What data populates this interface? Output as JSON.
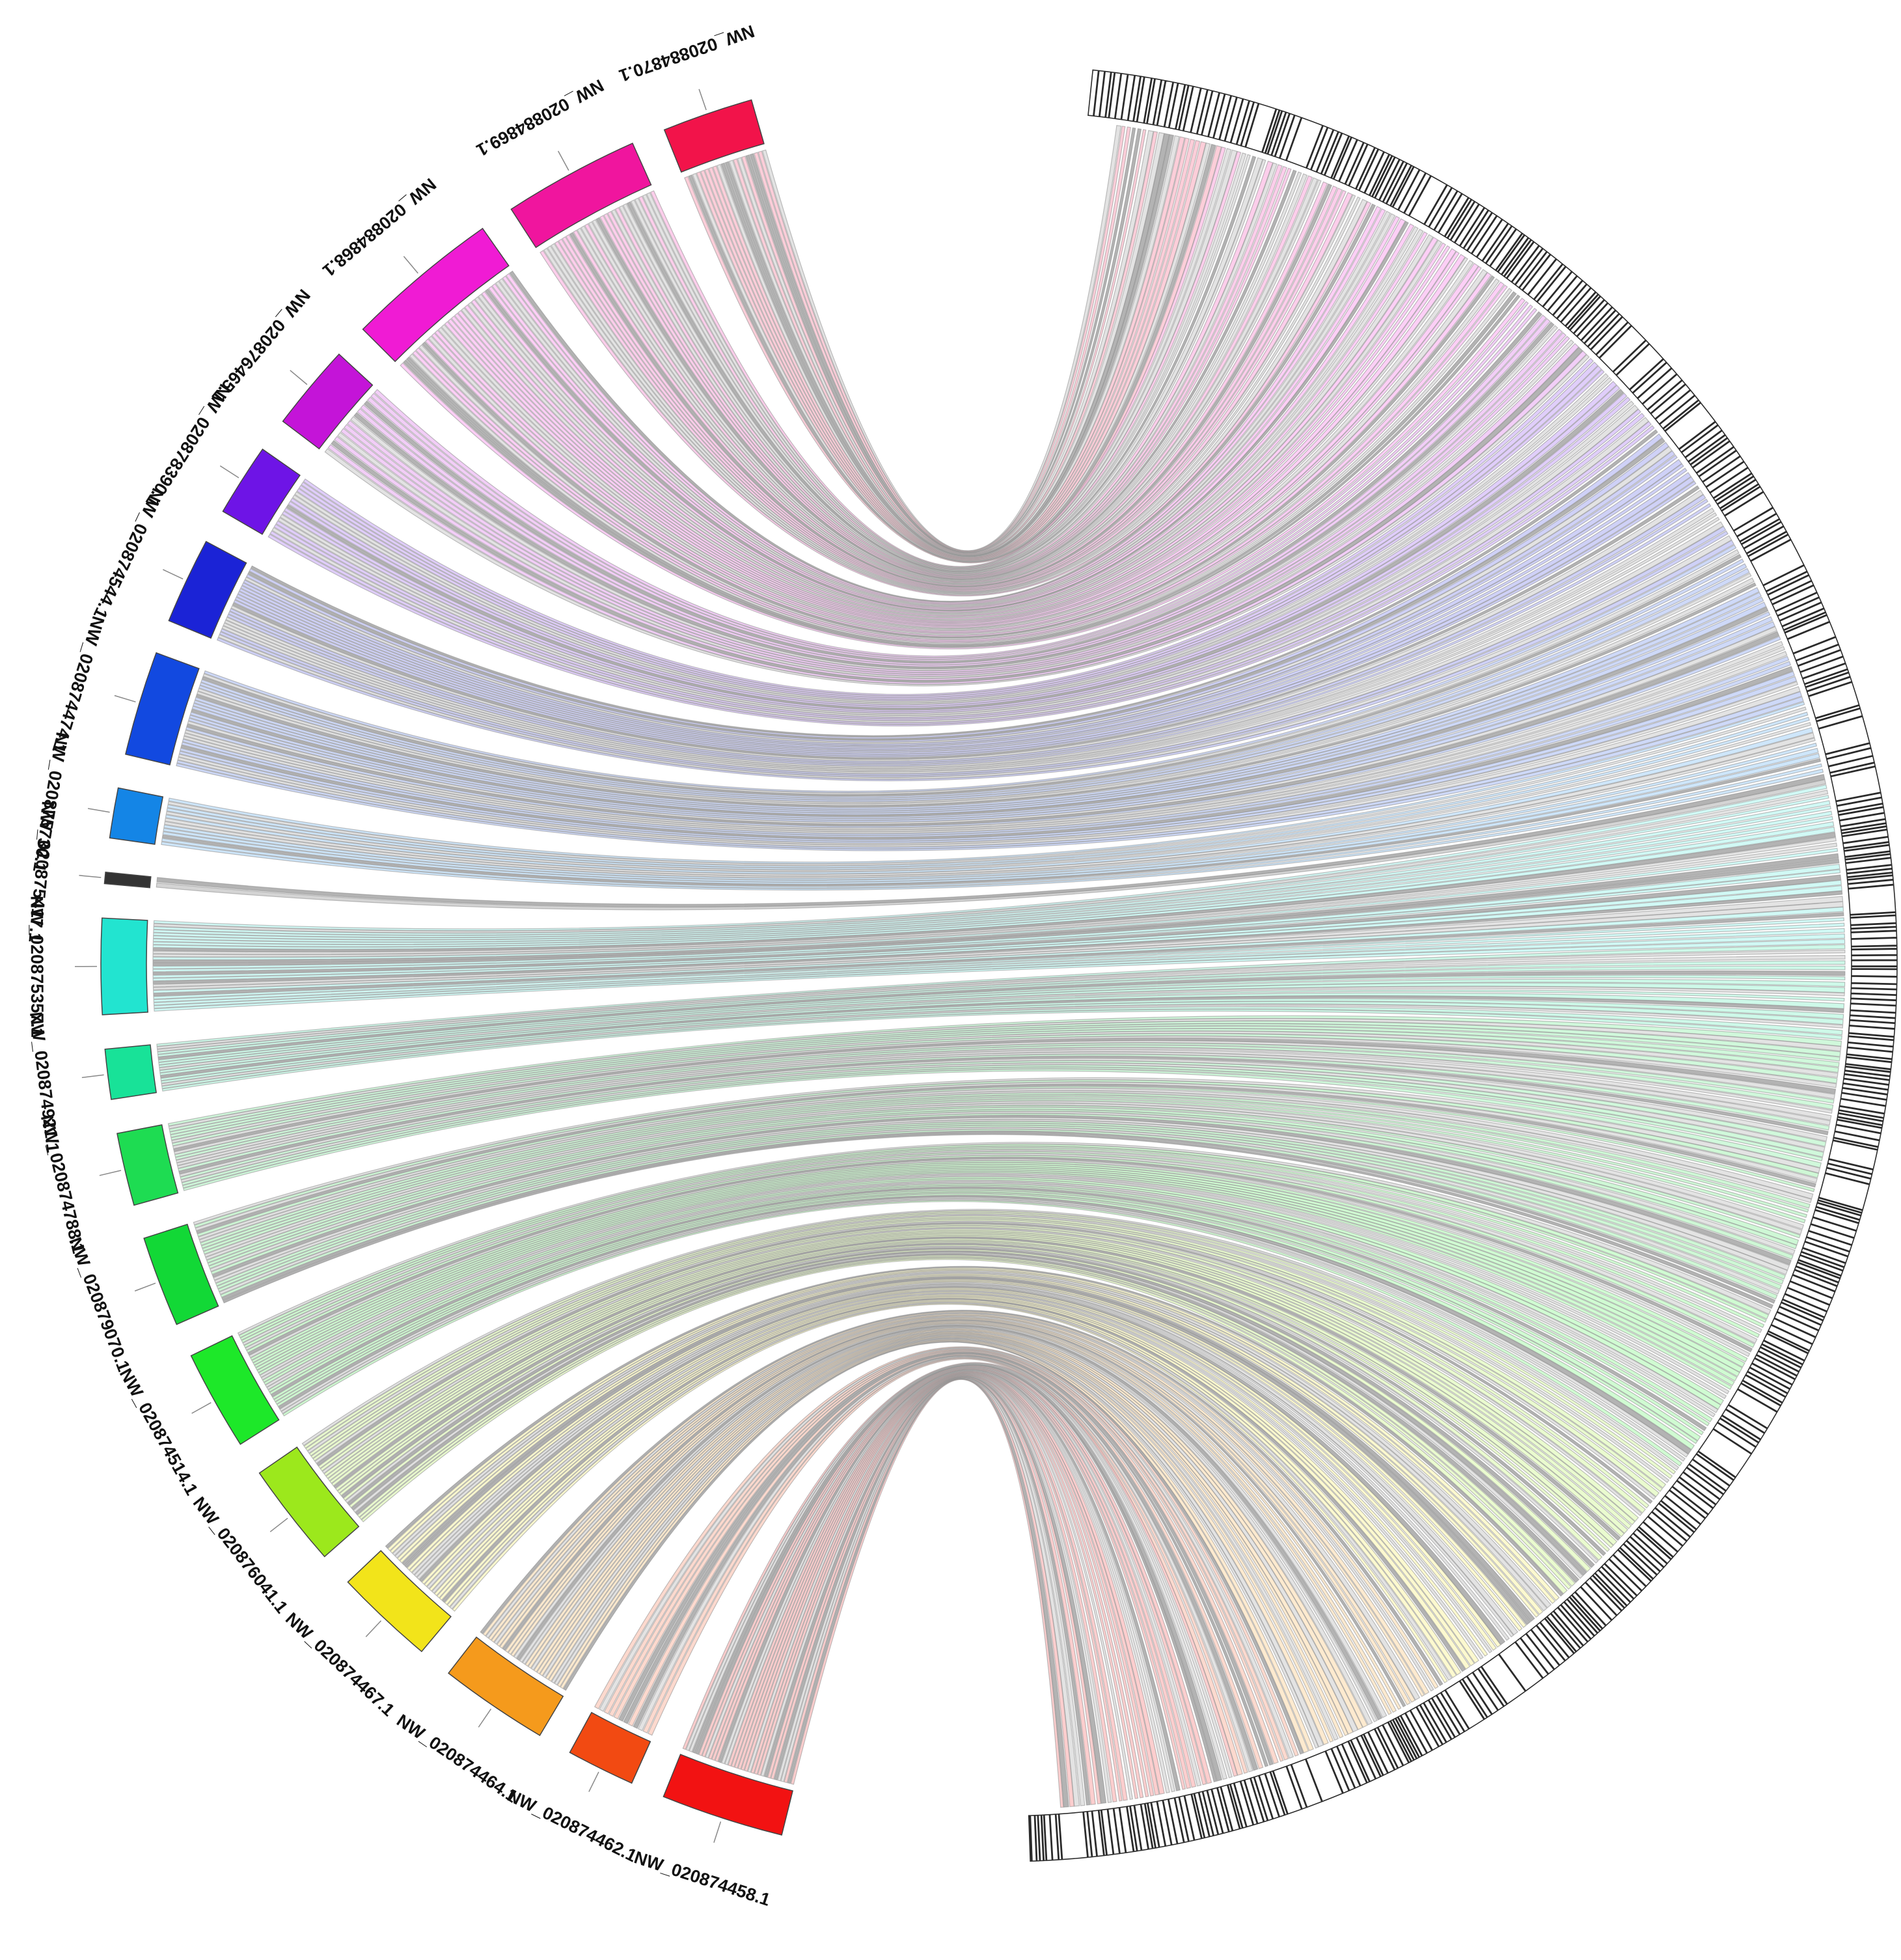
{
  "diagram": {
    "type": "circos",
    "scaffolds": [
      {
        "id": "NW_020884870.1",
        "color": "#f2134a",
        "size": 2,
        "links": 20
      },
      {
        "id": "NW_020884869.1",
        "color": "#f0159e",
        "size": 3,
        "links": 30
      },
      {
        "id": "NW_020884868.1",
        "color": "#f01bd4",
        "size": 3.4,
        "links": 34
      },
      {
        "id": "NW_020876465.1",
        "color": "#c414d8",
        "size": 1.9,
        "links": 16
      },
      {
        "id": "NW_020878390.1",
        "color": "#6e14e6",
        "size": 1.6,
        "links": 18
      },
      {
        "id": "NW_020874544.1",
        "color": "#1b23d6",
        "size": 1.9,
        "links": 26
      },
      {
        "id": "NW_020874474.1",
        "color": "#1249e0",
        "size": 2.3,
        "links": 32
      },
      {
        "id": "NW_020875730.1",
        "color": "#1485e6",
        "size": 1.1,
        "links": 14
      },
      {
        "id": "NW_020875417.1",
        "color": "#333333",
        "size": 0.25,
        "links": 2
      },
      {
        "id": "NW_020875357.1",
        "color": "#22e4d0",
        "size": 2.1,
        "links": 30
      },
      {
        "id": "NW_020874921.1",
        "color": "#18e298",
        "size": 1.1,
        "links": 18
      },
      {
        "id": "NW_020874788.1",
        "color": "#1edc52",
        "size": 1.6,
        "links": 24
      },
      {
        "id": "NW_020879070.1",
        "color": "#12d836",
        "size": 2,
        "links": 28
      },
      {
        "id": "NW_020874514.1",
        "color": "#1de829",
        "size": 2.2,
        "links": 34
      },
      {
        "id": "NW_020876041.1",
        "color": "#9ce81c",
        "size": 2.3,
        "links": 32
      },
      {
        "id": "NW_020874467.1",
        "color": "#f2e41a",
        "size": 2.2,
        "links": 28
      },
      {
        "id": "NW_020874464.1",
        "color": "#f59a1c",
        "size": 2.4,
        "links": 30
      },
      {
        "id": "NW_020874462.1",
        "color": "#f24a12",
        "size": 1.5,
        "links": 12
      },
      {
        "id": "NW_020874458.1",
        "color": "#f21212",
        "size": 2.7,
        "links": 34
      }
    ]
  }
}
